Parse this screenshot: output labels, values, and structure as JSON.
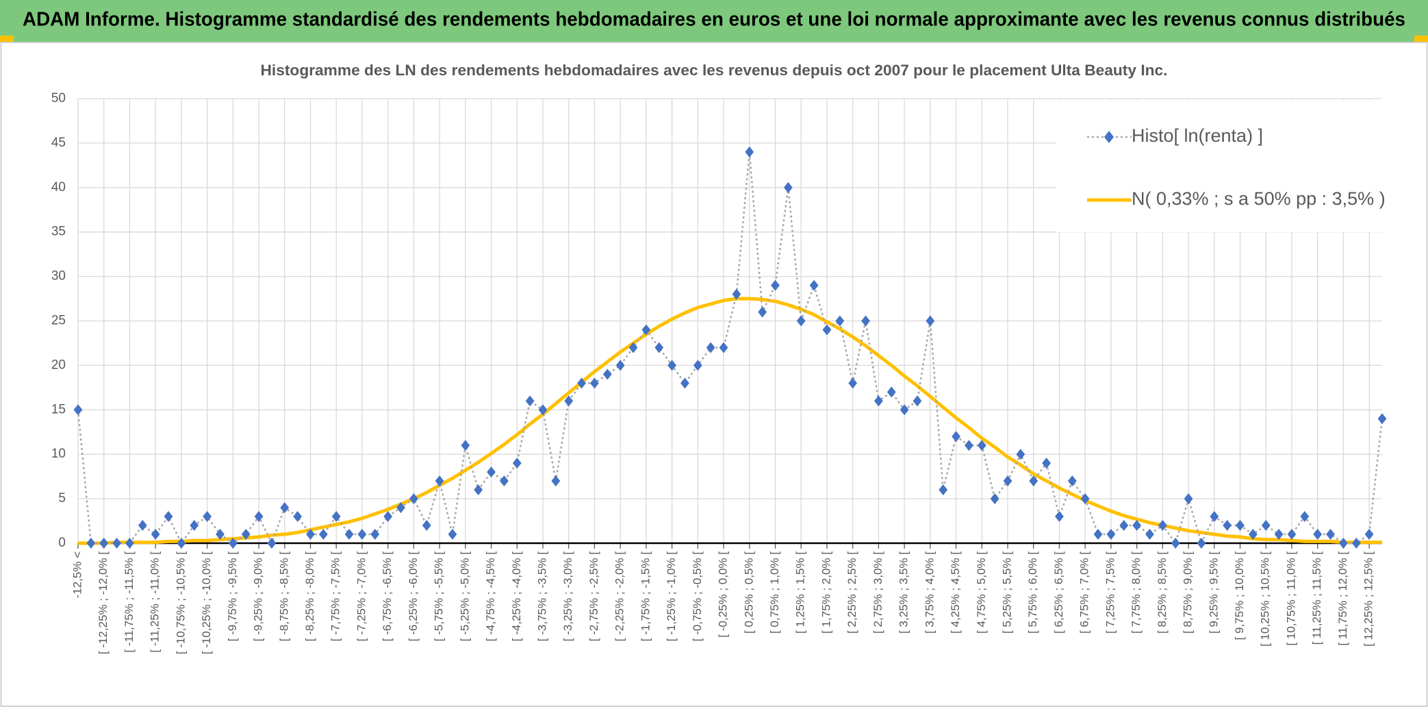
{
  "header": {
    "title": "ADAM Informe. Histogramme standardisé des rendements hebdomadaires en euros et une loi normale approximante avec les revenus connus distribués"
  },
  "chart_data": {
    "type": "line",
    "title": "Histogramme des LN des rendements hebdomadaires avec les revenus depuis oct 2007 pour le placement Ulta Beauty Inc.",
    "categories": [
      "-12,5% <",
      null,
      "[ -12,25% ; -12,0% [",
      null,
      "[ -11,75% ; -11,5% [",
      null,
      "[ -11,25% ; -11,0% [",
      null,
      "[ -10,75% ; -10,5% [",
      null,
      "[ -10,25% ; -10,0% [",
      null,
      "[ -9,75% ; -9,5% [",
      null,
      "[ -9,25% ; -9,0% [",
      null,
      "[ -8,75% ; -8,5% [",
      null,
      "[ -8,25% ; -8,0% [",
      null,
      "[ -7,75% ; -7,5% [",
      null,
      "[ -7,25% ; -7,0% [",
      null,
      "[ -6,75% ; -6,5% [",
      null,
      "[ -6,25% ; -6,0% [",
      null,
      "[ -5,75% ; -5,5% [",
      null,
      "[ -5,25% ; -5,0% [",
      null,
      "[ -4,75% ; -4,5% [",
      null,
      "[ -4,25% ; -4,0% [",
      null,
      "[ -3,75% ; -3,5% [",
      null,
      "[ -3,25% ; -3,0% [",
      null,
      "[ -2,75% ; -2,5% [",
      null,
      "[ -2,25% ; -2,0% [",
      null,
      "[ -1,75% ; -1,5% [",
      null,
      "[ -1,25% ; -1,0% [",
      null,
      "[ -0,75% ; -0,5% [",
      null,
      "[ -0,25% ; 0,0% [",
      null,
      "[ 0,25% ; 0,5% [",
      null,
      "[ 0,75% ; 1,0% [",
      null,
      "[ 1,25% ; 1,5% [",
      null,
      "[ 1,75% ; 2,0% [",
      null,
      "[ 2,25% ; 2,5% [",
      null,
      "[ 2,75% ; 3,0% [",
      null,
      "[ 3,25% ; 3,5% [",
      null,
      "[ 3,75% ; 4,0% [",
      null,
      "[ 4,25% ; 4,5% [",
      null,
      "[ 4,75% ; 5,0% [",
      null,
      "[ 5,25% ; 5,5% [",
      null,
      "[ 5,75% ; 6,0% [",
      null,
      "[ 6,25% ; 6,5% [",
      null,
      "[ 6,75% ; 7,0% [",
      null,
      "[ 7,25% ; 7,5% [",
      null,
      "[ 7,75% ; 8,0% [",
      null,
      "[ 8,25% ; 8,5% [",
      null,
      "[ 8,75% ; 9,0% [",
      null,
      "[ 9,25% ; 9,5% [",
      null,
      "[ 9,75% ; 10,0% [",
      null,
      "[ 10,25% ; 10,5% [",
      null,
      "[ 10,75% ; 11,0% [",
      null,
      "[ 11,25% ; 11,5% [",
      null,
      "[ 11,75% ; 12,0% [",
      null,
      "[ 12,25% ; 12,5% [",
      null
    ],
    "series": [
      {
        "name": "Histo[ ln(renta) ]",
        "color": "#4472c4",
        "line_color": "#a6a6a6",
        "marker": "diamond",
        "values": [
          15,
          0,
          0,
          0,
          0,
          2,
          1,
          3,
          0,
          2,
          3,
          1,
          0,
          1,
          3,
          0,
          4,
          3,
          1,
          1,
          3,
          1,
          1,
          1,
          3,
          4,
          5,
          2,
          7,
          1,
          11,
          6,
          8,
          7,
          9,
          16,
          15,
          7,
          16,
          18,
          18,
          19,
          20,
          22,
          24,
          22,
          20,
          18,
          20,
          22,
          22,
          28,
          44,
          26,
          29,
          40,
          25,
          29,
          24,
          25,
          18,
          25,
          16,
          17,
          15,
          16,
          25,
          6,
          12,
          11,
          11,
          5,
          7,
          10,
          7,
          9,
          3,
          7,
          5,
          1,
          1,
          2,
          2,
          1,
          2,
          0,
          5,
          0,
          3,
          2,
          2,
          1,
          2,
          1,
          1,
          3,
          1,
          1,
          0,
          0,
          1,
          14
        ]
      },
      {
        "name": "N( 0,33% ; s a 50% pp : 3,5% )",
        "color": "#ffc000",
        "values": [
          0.0,
          0.0,
          0.0,
          0.1,
          0.1,
          0.1,
          0.1,
          0.2,
          0.2,
          0.3,
          0.3,
          0.4,
          0.5,
          0.6,
          0.7,
          0.9,
          1.0,
          1.2,
          1.5,
          1.8,
          2.1,
          2.4,
          2.8,
          3.3,
          3.8,
          4.4,
          5.0,
          5.7,
          6.5,
          7.3,
          8.2,
          9.1,
          10.1,
          11.1,
          12.2,
          13.4,
          14.5,
          15.7,
          16.9,
          18.1,
          19.3,
          20.4,
          21.5,
          22.5,
          23.5,
          24.4,
          25.2,
          25.9,
          26.5,
          26.9,
          27.3,
          27.5,
          27.5,
          27.4,
          27.2,
          26.8,
          26.3,
          25.7,
          24.9,
          24.1,
          23.2,
          22.2,
          21.1,
          20.0,
          18.8,
          17.7,
          16.5,
          15.3,
          14.1,
          13.0,
          11.8,
          10.8,
          9.7,
          8.8,
          7.8,
          7.0,
          6.2,
          5.5,
          4.8,
          4.2,
          3.6,
          3.1,
          2.7,
          2.3,
          2.0,
          1.7,
          1.4,
          1.2,
          1.0,
          0.8,
          0.7,
          0.5,
          0.4,
          0.4,
          0.3,
          0.2,
          0.2,
          0.2,
          0.1,
          0.1,
          0.1,
          0.1
        ]
      }
    ],
    "ylim": [
      0,
      50
    ],
    "yticks": [
      0,
      5,
      10,
      15,
      20,
      25,
      30,
      35,
      40,
      45,
      50
    ],
    "grid": true,
    "legend": "upper right"
  }
}
